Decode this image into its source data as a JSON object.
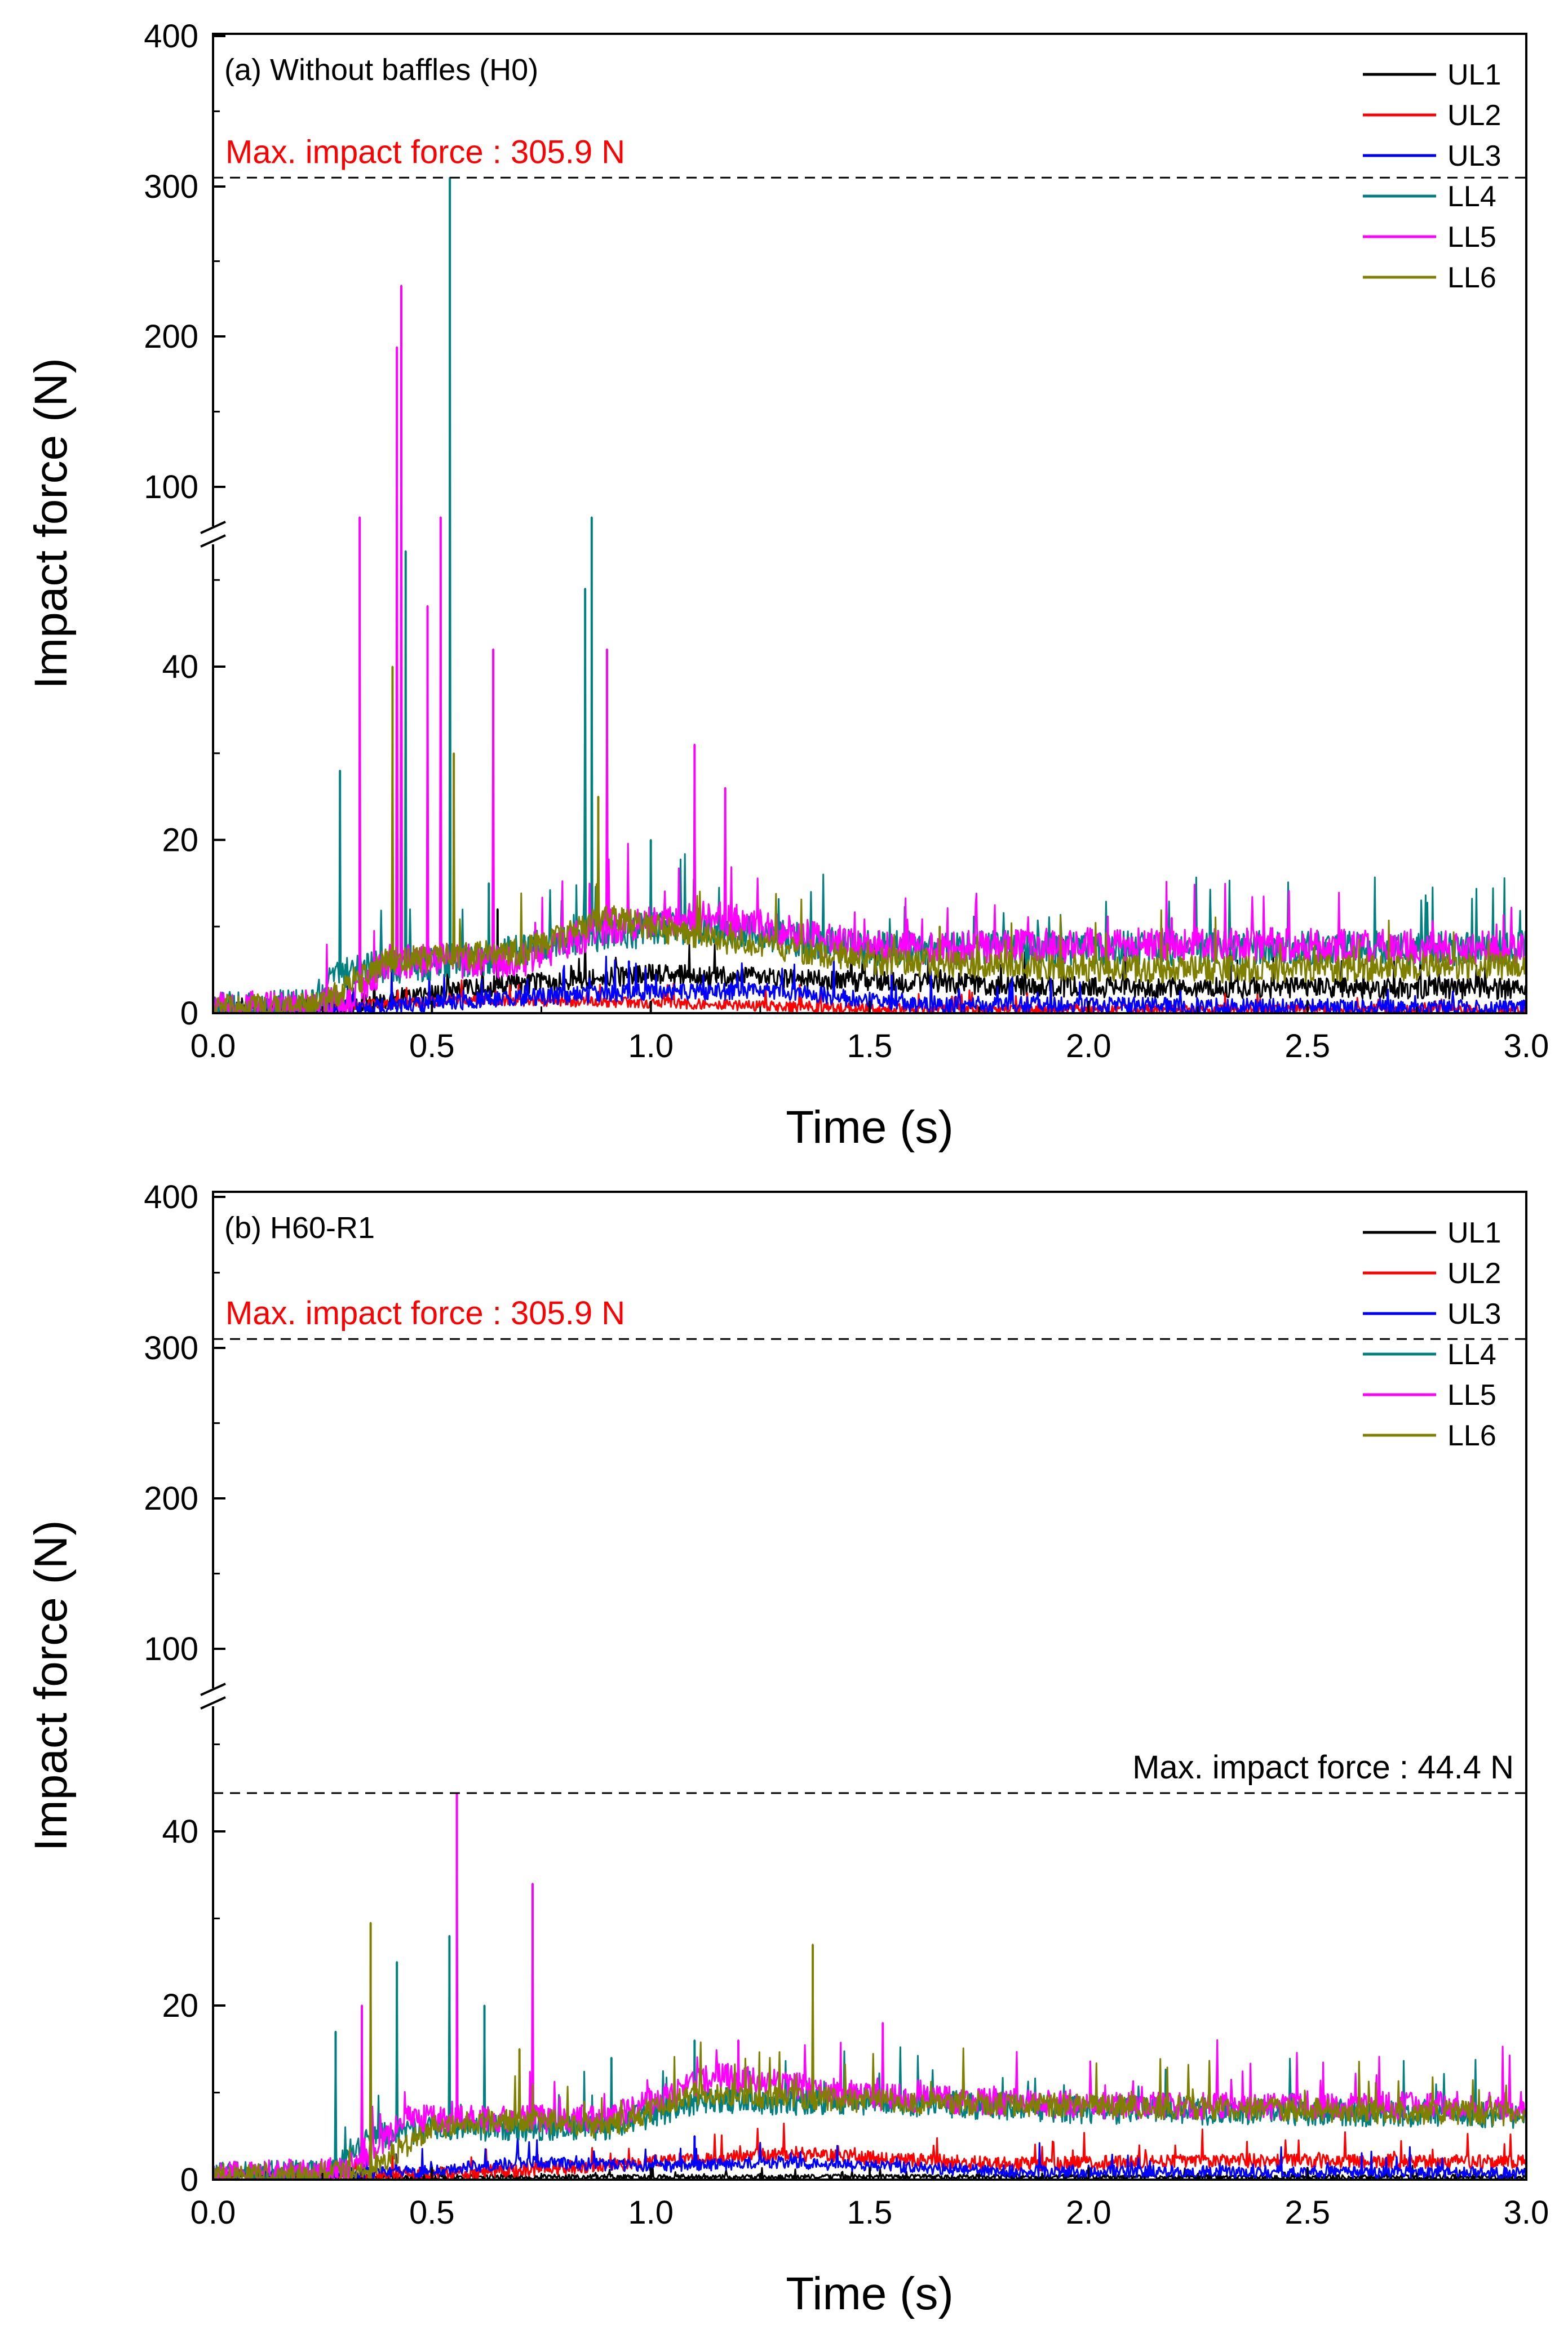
{
  "chart_data": [
    {
      "type": "line",
      "panel_label": "(a) Without baffles (H0)",
      "xlabel": "Time (s)",
      "ylabel": "Impact force (N)",
      "xlim": [
        0,
        3
      ],
      "x_ticks": [
        "0.0",
        "0.5",
        "1.0",
        "1.5",
        "2.0",
        "2.5",
        "3.0"
      ],
      "ylim_lower": [
        0,
        55
      ],
      "ylim_upper": [
        75,
        400
      ],
      "y_ticks_lower": [
        "0",
        "20",
        "40"
      ],
      "y_ticks_upper": [
        "100",
        "200",
        "300",
        "400"
      ],
      "axis_break": true,
      "max_line": {
        "value": 305.9,
        "label": "Max. impact force : 305.9 N",
        "color": "#ff0000"
      },
      "legend_position": "top-right",
      "series": [
        {
          "name": "UL1",
          "color": "#000000",
          "base": 3.0,
          "noise": 1.2,
          "ramp_start": 0.3,
          "profile": [
            [
              0,
              0.5
            ],
            [
              0.3,
              0.8
            ],
            [
              0.6,
              3
            ],
            [
              1.0,
              4.5
            ],
            [
              1.4,
              3.8
            ],
            [
              2.0,
              3.0
            ],
            [
              3.0,
              2.8
            ]
          ],
          "peaks": [
            [
              0.65,
              12
            ],
            [
              0.85,
              9
            ]
          ]
        },
        {
          "name": "UL2",
          "color": "#ff0000",
          "base": 0.5,
          "noise": 0.6,
          "profile": [
            [
              0,
              0.3
            ],
            [
              0.6,
              1.5
            ],
            [
              1.0,
              1.2
            ],
            [
              1.5,
              0.5
            ],
            [
              3.0,
              0.4
            ]
          ],
          "peaks": []
        },
        {
          "name": "UL3",
          "color": "#0000ff",
          "base": 1.5,
          "noise": 1.0,
          "profile": [
            [
              0,
              0.3
            ],
            [
              0.3,
              0.5
            ],
            [
              0.6,
              1.5
            ],
            [
              1.0,
              2.5
            ],
            [
              1.3,
              2.5
            ],
            [
              1.6,
              1.0
            ],
            [
              3.0,
              0.5
            ]
          ],
          "peaks": [
            [
              0.95,
              6
            ],
            [
              1.55,
              5
            ]
          ]
        },
        {
          "name": "LL4",
          "color": "#008080",
          "base": 7.5,
          "noise": 2.0,
          "profile": [
            [
              0,
              0.5
            ],
            [
              0.22,
              0.8
            ],
            [
              0.3,
              5
            ],
            [
              0.6,
              6
            ],
            [
              0.85,
              9
            ],
            [
              1.1,
              10
            ],
            [
              1.5,
              7.5
            ],
            [
              3.0,
              7.5
            ]
          ],
          "peaks": [
            [
              0.29,
              28
            ],
            [
              0.44,
              55
            ],
            [
              0.541,
              305.9
            ],
            [
              0.63,
              15
            ],
            [
              0.85,
              49
            ],
            [
              0.865,
              75
            ],
            [
              1.0,
              20
            ],
            [
              1.17,
              12
            ]
          ]
        },
        {
          "name": "LL5",
          "color": "#ff00ff",
          "base": 7.5,
          "noise": 2.0,
          "profile": [
            [
              0,
              0.4
            ],
            [
              0.3,
              1
            ],
            [
              0.4,
              6
            ],
            [
              0.7,
              6
            ],
            [
              0.9,
              10
            ],
            [
              1.15,
              11
            ],
            [
              1.5,
              7.5
            ],
            [
              2.2,
              8
            ],
            [
              3.0,
              7.5
            ]
          ],
          "peaks": [
            [
              0.335,
              75
            ],
            [
              0.42,
              193
            ],
            [
              0.43,
              234
            ],
            [
              0.49,
              47
            ],
            [
              0.52,
              58
            ],
            [
              0.64,
              42
            ],
            [
              0.9,
              42
            ],
            [
              1.1,
              31
            ],
            [
              1.17,
              26
            ],
            [
              2.19,
              11
            ]
          ]
        },
        {
          "name": "LL6",
          "color": "#808000",
          "base": 5.5,
          "noise": 1.6,
          "profile": [
            [
              0,
              0.5
            ],
            [
              0.25,
              1
            ],
            [
              0.4,
              6
            ],
            [
              0.7,
              7
            ],
            [
              0.9,
              11
            ],
            [
              1.1,
              9
            ],
            [
              1.5,
              6
            ],
            [
              2.2,
              5
            ],
            [
              3.0,
              5.5
            ]
          ],
          "peaks": [
            [
              0.41,
              40
            ],
            [
              0.55,
              30
            ],
            [
              0.88,
              25
            ],
            [
              1.66,
              10
            ],
            [
              2.18,
              8
            ]
          ]
        }
      ]
    },
    {
      "type": "line",
      "panel_label": "(b) H60-R1",
      "xlabel": "Time (s)",
      "ylabel": "Impact force (N)",
      "xlim": [
        0,
        3
      ],
      "x_ticks": [
        "0.0",
        "0.5",
        "1.0",
        "1.5",
        "2.0",
        "2.5",
        "3.0"
      ],
      "ylim_lower": [
        0,
        55
      ],
      "ylim_upper": [
        75,
        400
      ],
      "y_ticks_lower": [
        "0",
        "20",
        "40"
      ],
      "y_ticks_upper": [
        "100",
        "200",
        "300",
        "400"
      ],
      "axis_break": true,
      "max_line": {
        "value": 305.9,
        "label": "Max. impact force : 305.9 N",
        "color": "#ff0000"
      },
      "max_line_2": {
        "value": 44.4,
        "label": "Max. impact force : 44.4 N",
        "color": "#000000"
      },
      "legend_position": "top-right",
      "series": [
        {
          "name": "UL1",
          "color": "#000000",
          "base": 0.3,
          "noise": 0.3,
          "profile": [
            [
              0,
              0.3
            ],
            [
              3.0,
              0.3
            ]
          ],
          "peaks": []
        },
        {
          "name": "UL2",
          "color": "#ff0000",
          "base": 2.0,
          "noise": 0.8,
          "profile": [
            [
              0,
              0.3
            ],
            [
              0.6,
              0.8
            ],
            [
              1.0,
              2
            ],
            [
              1.3,
              3
            ],
            [
              1.8,
              1.8
            ],
            [
              2.4,
              2.2
            ],
            [
              3.0,
              2.0
            ]
          ],
          "peaks": []
        },
        {
          "name": "UL3",
          "color": "#0000ff",
          "base": 1.0,
          "noise": 0.7,
          "profile": [
            [
              0,
              0.3
            ],
            [
              0.5,
              1
            ],
            [
              0.7,
              2
            ],
            [
              1.0,
              1.5
            ],
            [
              1.3,
              2
            ],
            [
              1.8,
              1
            ],
            [
              3.0,
              0.8
            ]
          ],
          "peaks": [
            [
              1.1,
              5
            ]
          ]
        },
        {
          "name": "LL4",
          "color": "#008080",
          "base": 7.5,
          "noise": 1.6,
          "profile": [
            [
              0,
              0.4
            ],
            [
              0.27,
              0.8
            ],
            [
              0.35,
              5
            ],
            [
              0.6,
              6
            ],
            [
              0.9,
              6
            ],
            [
              1.1,
              9
            ],
            [
              1.5,
              9
            ],
            [
              2.0,
              8
            ],
            [
              3.0,
              7.5
            ]
          ],
          "peaks": [
            [
              0.28,
              17
            ],
            [
              0.42,
              25
            ],
            [
              0.54,
              28
            ],
            [
              0.62,
              20
            ],
            [
              0.91,
              14
            ],
            [
              1.1,
              16
            ]
          ]
        },
        {
          "name": "LL5",
          "color": "#ff00ff",
          "base": 8.5,
          "noise": 1.6,
          "profile": [
            [
              0,
              0.4
            ],
            [
              0.3,
              1
            ],
            [
              0.45,
              7
            ],
            [
              0.7,
              7
            ],
            [
              0.9,
              7
            ],
            [
              1.15,
              12
            ],
            [
              1.5,
              9.5
            ],
            [
              2.0,
              8.5
            ],
            [
              3.0,
              8.5
            ]
          ],
          "peaks": [
            [
              0.34,
              20
            ],
            [
              0.557,
              44.4
            ],
            [
              0.73,
              34
            ],
            [
              1.53,
              18
            ],
            [
              1.2,
              16
            ]
          ]
        },
        {
          "name": "LL6",
          "color": "#808000",
          "base": 7.5,
          "noise": 1.4,
          "profile": [
            [
              0,
              0.4
            ],
            [
              0.35,
              0.8
            ],
            [
              0.5,
              6
            ],
            [
              0.7,
              7
            ],
            [
              0.9,
              6
            ],
            [
              1.1,
              10
            ],
            [
              1.5,
              9
            ],
            [
              2.0,
              8.5
            ],
            [
              3.0,
              7.5
            ]
          ],
          "peaks": [
            [
              0.36,
              29.5
            ],
            [
              0.7,
              15
            ],
            [
              1.37,
              27
            ]
          ]
        }
      ]
    }
  ]
}
